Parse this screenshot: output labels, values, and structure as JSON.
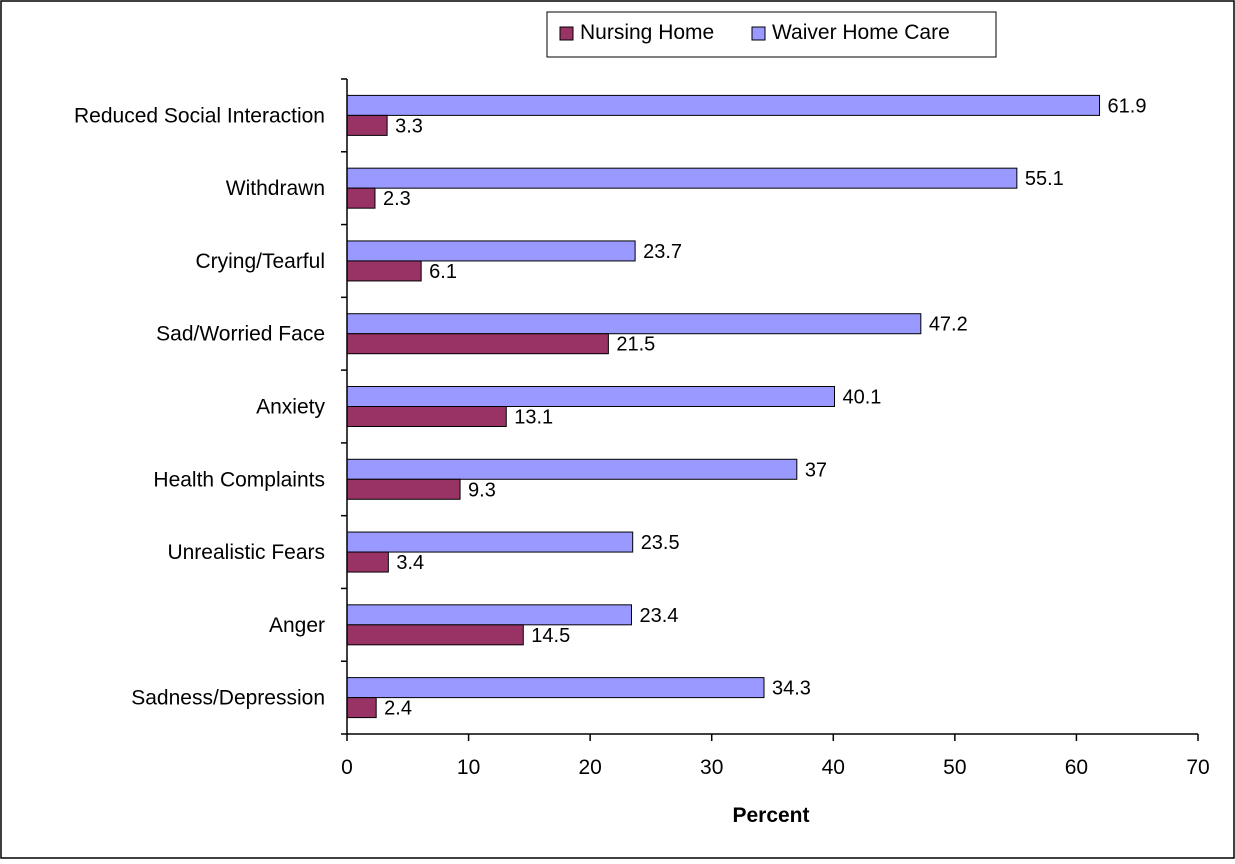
{
  "chart_data": {
    "type": "bar",
    "orientation": "horizontal",
    "categories": [
      "Reduced Social Interaction",
      "Withdrawn",
      "Crying/Tearful",
      "Sad/Worried Face",
      "Anxiety",
      "Health Complaints",
      "Unrealistic Fears",
      "Anger",
      "Sadness/Depression"
    ],
    "series": [
      {
        "name": "Nursing Home",
        "color": "#993366",
        "values": [
          3.3,
          2.3,
          6.1,
          21.5,
          13.1,
          9.3,
          3.4,
          14.5,
          2.4
        ]
      },
      {
        "name": "Waiver Home Care",
        "color": "#9999ff",
        "values": [
          61.9,
          55.1,
          23.7,
          47.2,
          40.1,
          37,
          23.5,
          23.4,
          34.3
        ]
      }
    ],
    "data_labels": [
      [
        "3.3",
        "2.3",
        "6.1",
        "21.5",
        "13.1",
        "9.3",
        "3.4",
        "14.5",
        "2.4"
      ],
      [
        "61.9",
        "55.1",
        "23.7",
        "47.2",
        "40.1",
        "37",
        "23.5",
        "23.4",
        "34.3"
      ]
    ],
    "xlabel": "Percent",
    "xlim": [
      0,
      70
    ],
    "xticks": [
      "0",
      "10",
      "20",
      "30",
      "40",
      "50",
      "60",
      "70"
    ],
    "grid": false,
    "legend": "top-right"
  }
}
